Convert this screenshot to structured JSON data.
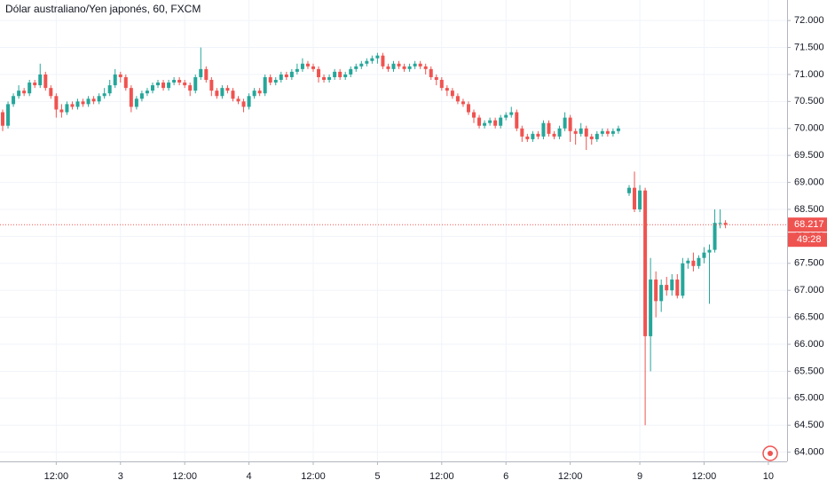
{
  "chart_data": {
    "type": "candlestick",
    "title": "Dólar australiano/Yen japonés, 60, FXCM",
    "up_color": "#26a69a",
    "down_color": "#ef5350",
    "grid": true,
    "xlim": [
      1.5,
      148.5
    ],
    "ylim": [
      63.83,
      72.38
    ],
    "xticks": [
      {
        "value": 12,
        "label": "12:00"
      },
      {
        "value": 24,
        "label": "3"
      },
      {
        "value": 36,
        "label": "12:00"
      },
      {
        "value": 48,
        "label": "4"
      },
      {
        "value": 60,
        "label": "12:00"
      },
      {
        "value": 72,
        "label": "5"
      },
      {
        "value": 84,
        "label": "12:00"
      },
      {
        "value": 96,
        "label": "6"
      },
      {
        "value": 108,
        "label": "12:00"
      },
      {
        "value": 121,
        "label": "9"
      },
      {
        "value": 133,
        "label": "12:00"
      },
      {
        "value": 145,
        "label": "10"
      }
    ],
    "yticks": [
      {
        "value": 64,
        "label": "64.000"
      },
      {
        "value": 64.5,
        "label": "64.500"
      },
      {
        "value": 65,
        "label": "65.000"
      },
      {
        "value": 65.5,
        "label": "65.500"
      },
      {
        "value": 66,
        "label": "66.000"
      },
      {
        "value": 66.5,
        "label": "66.500"
      },
      {
        "value": 67,
        "label": "67.000"
      },
      {
        "value": 67.5,
        "label": "67.500"
      },
      {
        "value": 68,
        "label": "68.000"
      },
      {
        "value": 68.5,
        "label": "68.500"
      },
      {
        "value": 69,
        "label": "69.000"
      },
      {
        "value": 69.5,
        "label": "69.500"
      },
      {
        "value": 70,
        "label": "70.000"
      },
      {
        "value": 70.5,
        "label": "70.500"
      },
      {
        "value": 71,
        "label": "71.000"
      },
      {
        "value": 71.5,
        "label": "71.500"
      },
      {
        "value": 72,
        "label": "72.000"
      }
    ],
    "last_price": {
      "value": 68.217,
      "label": "68.217"
    },
    "countdown": "49:28",
    "x": [
      2,
      3,
      4,
      5,
      6,
      7,
      8,
      9,
      10,
      11,
      12,
      13,
      14,
      15,
      16,
      17,
      18,
      19,
      20,
      21,
      22,
      23,
      24,
      25,
      26,
      27,
      28,
      29,
      30,
      31,
      32,
      33,
      34,
      35,
      36,
      37,
      38,
      39,
      40,
      41,
      42,
      43,
      44,
      45,
      46,
      47,
      48,
      49,
      50,
      51,
      52,
      53,
      54,
      55,
      56,
      57,
      58,
      59,
      60,
      61,
      62,
      63,
      64,
      65,
      66,
      67,
      68,
      69,
      70,
      71,
      72,
      73,
      74,
      75,
      76,
      77,
      78,
      79,
      80,
      81,
      82,
      83,
      84,
      85,
      86,
      87,
      88,
      89,
      90,
      91,
      92,
      93,
      94,
      95,
      96,
      97,
      98,
      99,
      100,
      101,
      102,
      103,
      104,
      105,
      106,
      107,
      108,
      109,
      110,
      111,
      112,
      113,
      114,
      115,
      116,
      117,
      119,
      120,
      121,
      122,
      123,
      124,
      125,
      126,
      127,
      128,
      129,
      130,
      131,
      132,
      133,
      134,
      135,
      136,
      137
    ],
    "open": [
      70.3,
      70.05,
      70.45,
      70.6,
      70.7,
      70.65,
      70.85,
      70.8,
      71.0,
      70.75,
      70.6,
      70.35,
      70.3,
      70.45,
      70.4,
      70.5,
      70.45,
      70.55,
      70.5,
      70.6,
      70.65,
      70.8,
      71.0,
      70.95,
      70.75,
      70.4,
      70.55,
      70.65,
      70.7,
      70.8,
      70.85,
      70.75,
      70.85,
      70.9,
      70.85,
      70.8,
      70.7,
      70.95,
      71.1,
      70.9,
      70.7,
      70.6,
      70.75,
      70.7,
      70.55,
      70.5,
      70.4,
      70.6,
      70.7,
      70.65,
      70.95,
      70.85,
      70.9,
      71.0,
      70.95,
      71.05,
      71.1,
      71.2,
      71.15,
      71.1,
      70.95,
      70.9,
      70.95,
      71.05,
      70.95,
      71.0,
      71.1,
      71.15,
      71.2,
      71.25,
      71.3,
      71.35,
      71.15,
      71.1,
      71.2,
      71.15,
      71.1,
      71.15,
      71.2,
      71.15,
      71.1,
      70.95,
      70.9,
      70.75,
      70.7,
      70.6,
      70.5,
      70.45,
      70.3,
      70.2,
      70.05,
      70.1,
      70.15,
      70.05,
      70.2,
      70.25,
      70.3,
      70.0,
      69.85,
      69.8,
      69.9,
      69.85,
      70.1,
      69.9,
      69.85,
      70.0,
      70.2,
      69.95,
      69.9,
      70.0,
      69.85,
      69.8,
      69.9,
      69.95,
      69.9,
      69.95,
      68.8,
      68.9,
      68.5,
      68.85,
      66.15,
      67.2,
      66.8,
      67.1,
      67.0,
      67.2,
      66.9,
      67.5,
      67.55,
      67.45,
      67.6,
      67.7,
      67.75,
      68.25,
      68.25
    ],
    "high": [
      70.35,
      70.5,
      70.65,
      70.8,
      70.75,
      70.9,
      70.9,
      71.2,
      71.05,
      70.8,
      70.65,
      70.45,
      70.5,
      70.5,
      70.55,
      70.55,
      70.6,
      70.6,
      70.65,
      70.75,
      70.9,
      71.1,
      71.05,
      71.0,
      70.8,
      70.6,
      70.7,
      70.75,
      70.85,
      70.9,
      70.9,
      70.9,
      70.95,
      70.95,
      70.9,
      70.85,
      71.0,
      71.5,
      71.15,
      70.95,
      70.75,
      70.8,
      70.8,
      70.75,
      70.6,
      70.55,
      70.65,
      70.75,
      70.75,
      71.0,
      71.0,
      70.95,
      71.05,
      71.05,
      71.1,
      71.2,
      71.3,
      71.25,
      71.2,
      71.15,
      71.0,
      71.0,
      71.1,
      71.1,
      71.05,
      71.15,
      71.2,
      71.25,
      71.3,
      71.35,
      71.4,
      71.4,
      71.2,
      71.25,
      71.25,
      71.2,
      71.2,
      71.25,
      71.25,
      71.2,
      71.15,
      71.0,
      70.95,
      70.8,
      70.75,
      70.65,
      70.55,
      70.5,
      70.35,
      70.25,
      70.15,
      70.2,
      70.2,
      70.25,
      70.3,
      70.4,
      70.35,
      70.05,
      69.9,
      69.95,
      69.95,
      70.15,
      70.15,
      69.95,
      70.05,
      70.3,
      70.25,
      70.0,
      70.1,
      70.05,
      69.9,
      69.95,
      70.0,
      70.0,
      70.0,
      70.05,
      68.95,
      69.2,
      68.95,
      68.9,
      67.6,
      67.35,
      67.2,
      67.25,
      67.3,
      67.3,
      67.6,
      67.6,
      67.7,
      67.65,
      67.8,
      67.85,
      68.5,
      68.5,
      68.3
    ],
    "low": [
      69.95,
      70.0,
      70.4,
      70.55,
      70.6,
      70.6,
      70.75,
      70.75,
      70.7,
      70.55,
      70.2,
      70.2,
      70.25,
      70.35,
      70.35,
      70.4,
      70.4,
      70.45,
      70.45,
      70.55,
      70.6,
      70.75,
      70.85,
      70.7,
      70.3,
      70.35,
      70.5,
      70.6,
      70.65,
      70.75,
      70.7,
      70.7,
      70.8,
      70.8,
      70.75,
      70.6,
      70.65,
      70.9,
      70.85,
      70.6,
      70.55,
      70.55,
      70.65,
      70.5,
      70.45,
      70.3,
      70.35,
      70.55,
      70.6,
      70.6,
      70.8,
      70.8,
      70.85,
      70.9,
      70.9,
      71.0,
      71.05,
      71.1,
      71.05,
      70.85,
      70.85,
      70.85,
      70.9,
      70.9,
      70.9,
      70.95,
      71.05,
      71.1,
      71.15,
      71.2,
      71.2,
      71.1,
      71.05,
      71.05,
      71.1,
      71.05,
      71.05,
      71.1,
      71.1,
      71.0,
      70.9,
      70.8,
      70.7,
      70.6,
      70.55,
      70.45,
      70.4,
      70.25,
      70.1,
      70.0,
      70.0,
      70.05,
      70.0,
      70.0,
      70.15,
      70.2,
      69.95,
      69.75,
      69.75,
      69.75,
      69.8,
      69.8,
      69.85,
      69.8,
      69.8,
      69.95,
      69.75,
      69.7,
      69.85,
      69.6,
      69.7,
      69.75,
      69.85,
      69.85,
      69.85,
      69.9,
      68.75,
      68.45,
      68.45,
      64.5,
      65.5,
      66.5,
      66.6,
      66.9,
      66.9,
      66.85,
      66.85,
      67.4,
      67.35,
      67.4,
      67.5,
      66.75,
      67.7,
      68.15,
      68.15
    ],
    "close": [
      70.05,
      70.45,
      70.6,
      70.7,
      70.65,
      70.85,
      70.8,
      71.0,
      70.75,
      70.6,
      70.35,
      70.3,
      70.45,
      70.4,
      70.5,
      70.45,
      70.55,
      70.5,
      70.6,
      70.65,
      70.8,
      71.0,
      70.95,
      70.75,
      70.4,
      70.55,
      70.65,
      70.7,
      70.8,
      70.85,
      70.75,
      70.85,
      70.9,
      70.85,
      70.8,
      70.7,
      70.95,
      71.1,
      70.9,
      70.7,
      70.6,
      70.75,
      70.7,
      70.55,
      70.5,
      70.4,
      70.6,
      70.7,
      70.65,
      70.95,
      70.85,
      70.9,
      71.0,
      70.95,
      71.05,
      71.1,
      71.2,
      71.15,
      71.1,
      70.95,
      70.9,
      70.95,
      71.05,
      70.95,
      71.0,
      71.1,
      71.15,
      71.2,
      71.25,
      71.3,
      71.35,
      71.15,
      71.1,
      71.2,
      71.15,
      71.1,
      71.15,
      71.2,
      71.15,
      71.1,
      70.95,
      70.9,
      70.75,
      70.7,
      70.6,
      70.5,
      70.45,
      70.3,
      70.2,
      70.05,
      70.1,
      70.15,
      70.05,
      70.2,
      70.25,
      70.3,
      70.0,
      69.85,
      69.8,
      69.9,
      69.85,
      70.1,
      69.9,
      69.85,
      70.0,
      70.2,
      69.95,
      69.9,
      70.0,
      69.85,
      69.8,
      69.9,
      69.95,
      69.9,
      69.95,
      70.0,
      68.9,
      68.5,
      68.85,
      66.15,
      67.2,
      66.8,
      67.1,
      67.0,
      67.2,
      66.9,
      67.5,
      67.55,
      67.45,
      67.6,
      67.7,
      67.75,
      68.25,
      68.25,
      68.217
    ]
  }
}
